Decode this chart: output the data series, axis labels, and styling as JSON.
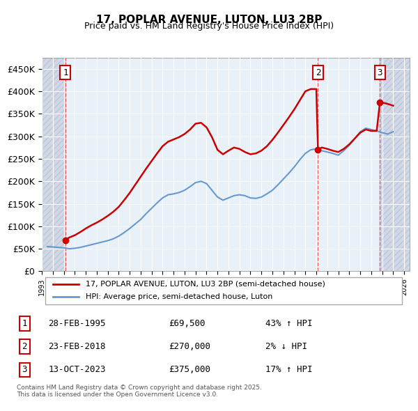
{
  "title": "17, POPLAR AVENUE, LUTON, LU3 2BP",
  "subtitle": "Price paid vs. HM Land Registry's House Price Index (HPI)",
  "ylabel_ticks": [
    "£0",
    "£50K",
    "£100K",
    "£150K",
    "£200K",
    "£250K",
    "£300K",
    "£350K",
    "£400K",
    "£450K"
  ],
  "ytick_vals": [
    0,
    50000,
    100000,
    150000,
    200000,
    250000,
    300000,
    350000,
    400000,
    450000
  ],
  "ylim": [
    0,
    475000
  ],
  "xlim_start": 1993.0,
  "xlim_end": 2026.5,
  "sale_dates": [
    1995.15,
    2018.15,
    2023.79
  ],
  "sale_prices": [
    69500,
    270000,
    375000
  ],
  "sale_labels": [
    "1",
    "2",
    "3"
  ],
  "sale_label_dates": [
    1995.15,
    2018.15,
    2023.79
  ],
  "sale_label_prices": [
    415000,
    415000,
    415000
  ],
  "red_line_color": "#cc0000",
  "blue_line_color": "#6699cc",
  "dashed_line_color": "#ff4444",
  "background_plot": "#e8f0f8",
  "background_hatch": "#d0d8e8",
  "legend_line1": "17, POPLAR AVENUE, LUTON, LU3 2BP (semi-detached house)",
  "legend_line2": "HPI: Average price, semi-detached house, Luton",
  "table_rows": [
    [
      "1",
      "28-FEB-1995",
      "£69,500",
      "43% ↑ HPI"
    ],
    [
      "2",
      "23-FEB-2018",
      "£270,000",
      "2% ↓ HPI"
    ],
    [
      "3",
      "13-OCT-2023",
      "£375,000",
      "17% ↑ HPI"
    ]
  ],
  "footer": "Contains HM Land Registry data © Crown copyright and database right 2025.\nThis data is licensed under the Open Government Licence v3.0.",
  "hpi_years": [
    1993.5,
    1994.0,
    1994.5,
    1995.0,
    1995.5,
    1996.0,
    1996.5,
    1997.0,
    1997.5,
    1998.0,
    1998.5,
    1999.0,
    1999.5,
    2000.0,
    2000.5,
    2001.0,
    2001.5,
    2002.0,
    2002.5,
    2003.0,
    2003.5,
    2004.0,
    2004.5,
    2005.0,
    2005.5,
    2006.0,
    2006.5,
    2007.0,
    2007.5,
    2008.0,
    2008.5,
    2009.0,
    2009.5,
    2010.0,
    2010.5,
    2011.0,
    2011.5,
    2012.0,
    2012.5,
    2013.0,
    2013.5,
    2014.0,
    2014.5,
    2015.0,
    2015.5,
    2016.0,
    2016.5,
    2017.0,
    2017.5,
    2018.0,
    2018.5,
    2019.0,
    2019.5,
    2020.0,
    2020.5,
    2021.0,
    2021.5,
    2022.0,
    2022.5,
    2023.0,
    2023.5,
    2024.0,
    2024.5,
    2025.0
  ],
  "hpi_values": [
    55000,
    54000,
    53000,
    52000,
    50000,
    51000,
    53000,
    56000,
    59000,
    62000,
    65000,
    68000,
    72000,
    78000,
    86000,
    95000,
    105000,
    115000,
    128000,
    140000,
    152000,
    163000,
    170000,
    172000,
    175000,
    180000,
    188000,
    197000,
    200000,
    195000,
    180000,
    165000,
    158000,
    163000,
    168000,
    170000,
    168000,
    163000,
    162000,
    165000,
    172000,
    180000,
    192000,
    205000,
    218000,
    232000,
    248000,
    262000,
    270000,
    272000,
    268000,
    265000,
    262000,
    258000,
    268000,
    280000,
    295000,
    310000,
    318000,
    315000,
    312000,
    308000,
    305000,
    310000
  ],
  "property_years": [
    1993.5,
    1994.0,
    1994.5,
    1995.0,
    1995.15,
    1995.5,
    1996.0,
    1996.5,
    1997.0,
    1997.5,
    1998.0,
    1998.5,
    1999.0,
    1999.5,
    2000.0,
    2000.5,
    2001.0,
    2001.5,
    2002.0,
    2002.5,
    2003.0,
    2003.5,
    2004.0,
    2004.5,
    2005.0,
    2005.5,
    2006.0,
    2006.5,
    2007.0,
    2007.5,
    2008.0,
    2008.5,
    2009.0,
    2009.5,
    2010.0,
    2010.5,
    2011.0,
    2011.5,
    2012.0,
    2012.5,
    2013.0,
    2013.5,
    2014.0,
    2014.5,
    2015.0,
    2015.5,
    2016.0,
    2016.5,
    2017.0,
    2017.5,
    2018.0,
    2018.15,
    2018.5,
    2019.0,
    2019.5,
    2020.0,
    2020.5,
    2021.0,
    2021.5,
    2022.0,
    2022.5,
    2023.0,
    2023.5,
    2023.79,
    2024.0,
    2024.5,
    2025.0
  ],
  "property_values": [
    null,
    null,
    null,
    null,
    69500,
    75000,
    80000,
    87000,
    95000,
    102000,
    108000,
    115000,
    123000,
    132000,
    143000,
    158000,
    174000,
    192000,
    210000,
    228000,
    245000,
    262000,
    278000,
    288000,
    293000,
    298000,
    305000,
    315000,
    328000,
    330000,
    320000,
    298000,
    270000,
    260000,
    268000,
    275000,
    272000,
    265000,
    260000,
    262000,
    268000,
    278000,
    292000,
    308000,
    325000,
    342000,
    360000,
    380000,
    400000,
    405000,
    405000,
    270000,
    275000,
    272000,
    268000,
    265000,
    272000,
    282000,
    295000,
    308000,
    315000,
    312000,
    312000,
    375000,
    375000,
    372000,
    368000
  ]
}
